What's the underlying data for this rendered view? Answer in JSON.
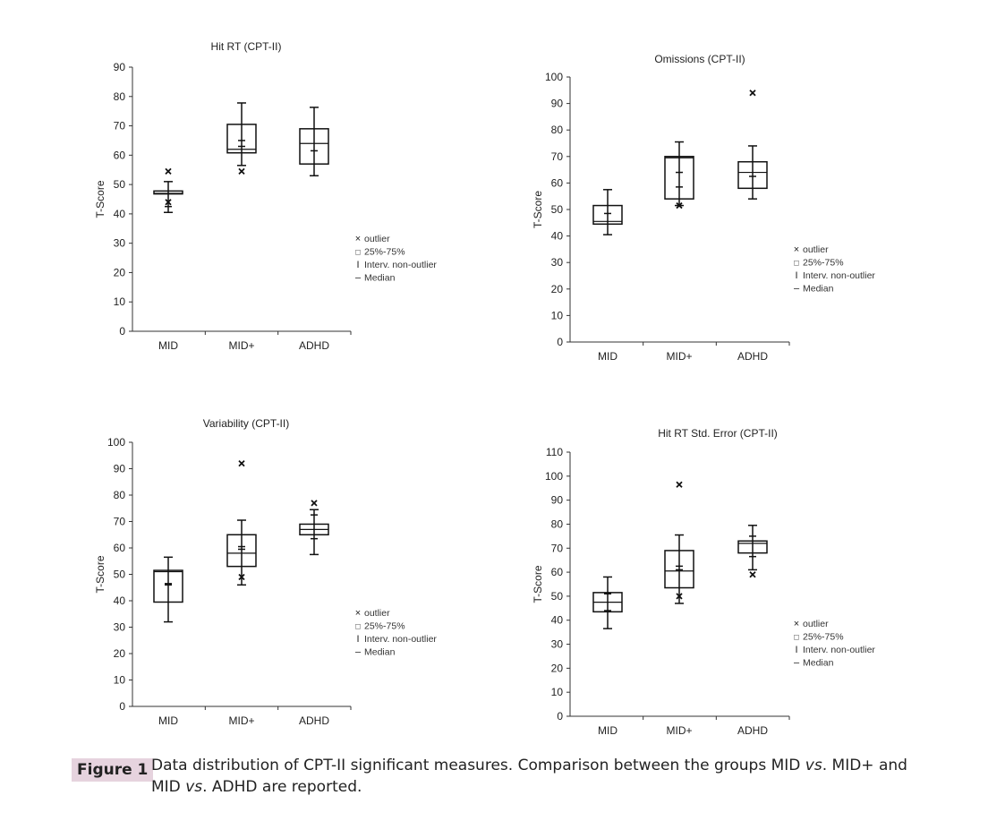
{
  "chart_data": [
    {
      "type": "box",
      "title": "Hit RT (CPT-II)",
      "ylabel": "T-Score",
      "ylim": [
        0,
        90
      ],
      "ytick_step": 10,
      "categories": [
        "MID",
        "MID+",
        "ADHD"
      ],
      "boxes": [
        {
          "q1": 46.8,
          "q3": 47.8,
          "median": 47,
          "whisker": [
            40.5,
            51
          ],
          "marks": [
            42.5
          ],
          "outliers": [
            54.5,
            44
          ]
        },
        {
          "q1": 60.8,
          "q3": 70.5,
          "median": 62,
          "whisker": [
            56.5,
            77.8
          ],
          "marks": [
            65,
            63
          ],
          "outliers": [
            54.5
          ]
        },
        {
          "q1": 57,
          "q3": 69,
          "median": 64,
          "whisker": [
            53,
            76.3
          ],
          "marks": [
            61.5
          ],
          "outliers": []
        }
      ]
    },
    {
      "type": "box",
      "title": "Omissions (CPT-II)",
      "ylabel": "T-Score",
      "ylim": [
        0,
        100
      ],
      "ytick_step": 10,
      "categories": [
        "MID",
        "MID+",
        "ADHD"
      ],
      "boxes": [
        {
          "q1": 44.5,
          "q3": 51.5,
          "median": 45.5,
          "whisker": [
            40.5,
            57.5
          ],
          "marks": [
            48.5
          ],
          "outliers": []
        },
        {
          "q1": 54,
          "q3": 70,
          "median": 69.5,
          "whisker": [
            51.5,
            75.5
          ],
          "marks": [
            64,
            58.5
          ],
          "outliers": [
            51.5
          ]
        },
        {
          "q1": 58,
          "q3": 68,
          "median": 64,
          "whisker": [
            54,
            74
          ],
          "marks": [
            62.5
          ],
          "outliers": [
            94
          ]
        }
      ]
    },
    {
      "type": "box",
      "title": "Variability (CPT-II)",
      "ylabel": "T-Score",
      "ylim": [
        0,
        100
      ],
      "ytick_step": 10,
      "categories": [
        "MID",
        "MID+",
        "ADHD"
      ],
      "boxes": [
        {
          "q1": 39.5,
          "q3": 51.5,
          "median": 51,
          "whisker": [
            32,
            56.5
          ],
          "marks": [
            46.5,
            46
          ],
          "outliers": []
        },
        {
          "q1": 53,
          "q3": 65,
          "median": 58,
          "whisker": [
            46,
            70.5
          ],
          "marks": [
            60.5,
            59.5
          ],
          "outliers": [
            92,
            49
          ]
        },
        {
          "q1": 65,
          "q3": 69,
          "median": 67,
          "whisker": [
            57.5,
            74.5
          ],
          "marks": [
            72.5,
            63.5
          ],
          "outliers": [
            77
          ]
        }
      ]
    },
    {
      "type": "box",
      "title": "Hit RT Std. Error (CPT-II)",
      "ylabel": "T-Score",
      "ylim": [
        0,
        110
      ],
      "ytick_step": 10,
      "categories": [
        "MID",
        "MID+",
        "ADHD"
      ],
      "boxes": [
        {
          "q1": 43.5,
          "q3": 51.5,
          "median": 47.5,
          "whisker": [
            36.5,
            58
          ],
          "marks": [
            51,
            44
          ],
          "outliers": []
        },
        {
          "q1": 53.5,
          "q3": 69,
          "median": 60.5,
          "whisker": [
            47,
            75.5
          ],
          "marks": [
            62.5,
            61
          ],
          "outliers": [
            96.5,
            50
          ]
        },
        {
          "q1": 68,
          "q3": 73,
          "median": 72,
          "whisker": [
            61,
            79.5
          ],
          "marks": [
            75,
            66.5
          ],
          "outliers": [
            59
          ]
        }
      ]
    }
  ],
  "legend": [
    {
      "symbol": "×",
      "label": "outlier"
    },
    {
      "symbol": "□",
      "label": "25%-75%"
    },
    {
      "symbol": "I",
      "label": "Interv. non-outlier"
    },
    {
      "symbol": "–",
      "label": "Median"
    }
  ],
  "caption": {
    "label": "Figure 1",
    "text": "Data distribution of CPT-II significant measures. Comparison between the groups MID vs. MID+ and MID vs. ADHD are reported."
  }
}
